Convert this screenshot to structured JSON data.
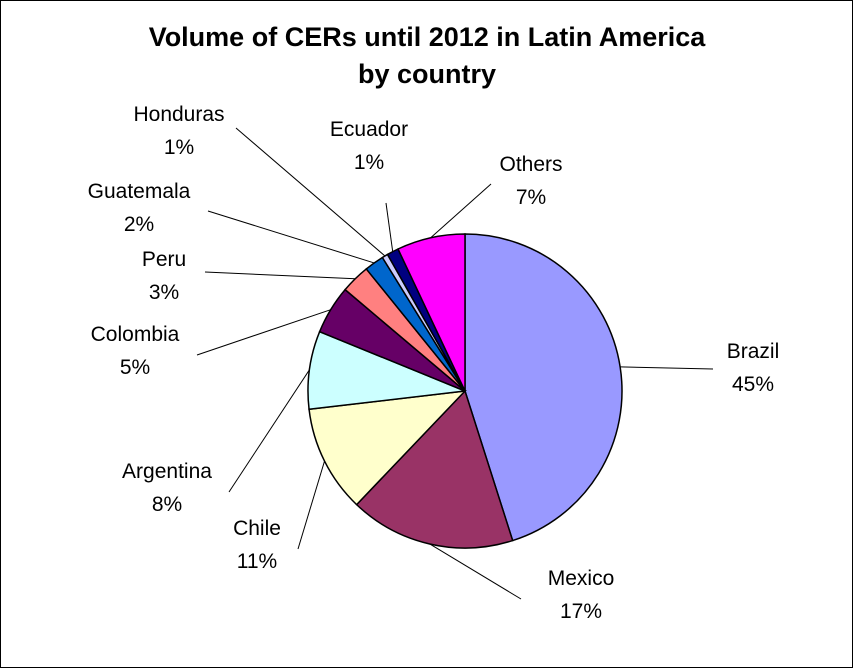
{
  "chart_data": {
    "type": "pie",
    "title": "Volume of CERs until 2012 in Latin America",
    "subtitle": "by country",
    "slices": [
      {
        "name": "Brazil",
        "percent_label": "45%",
        "value": 45,
        "color": "#9999FF"
      },
      {
        "name": "Mexico",
        "percent_label": "17%",
        "value": 17,
        "color": "#993366"
      },
      {
        "name": "Chile",
        "percent_label": "11%",
        "value": 11,
        "color": "#FFFFCC"
      },
      {
        "name": "Argentina",
        "percent_label": "8%",
        "value": 8,
        "color": "#CCFFFF"
      },
      {
        "name": "Colombia",
        "percent_label": "5%",
        "value": 5,
        "color": "#660066"
      },
      {
        "name": "Peru",
        "percent_label": "3%",
        "value": 3,
        "color": "#FF8080"
      },
      {
        "name": "Guatemala",
        "percent_label": "2%",
        "value": 2,
        "color": "#0066CC"
      },
      {
        "name": "Honduras",
        "percent_label": "1%",
        "value": 0.6,
        "color": "#CCCCFF"
      },
      {
        "name": "Ecuador",
        "percent_label": "1%",
        "value": 1.2,
        "color": "#000080"
      },
      {
        "name": "Others",
        "percent_label": "7%",
        "value": 7,
        "color": "#FF00FF"
      }
    ],
    "legend": "none"
  }
}
